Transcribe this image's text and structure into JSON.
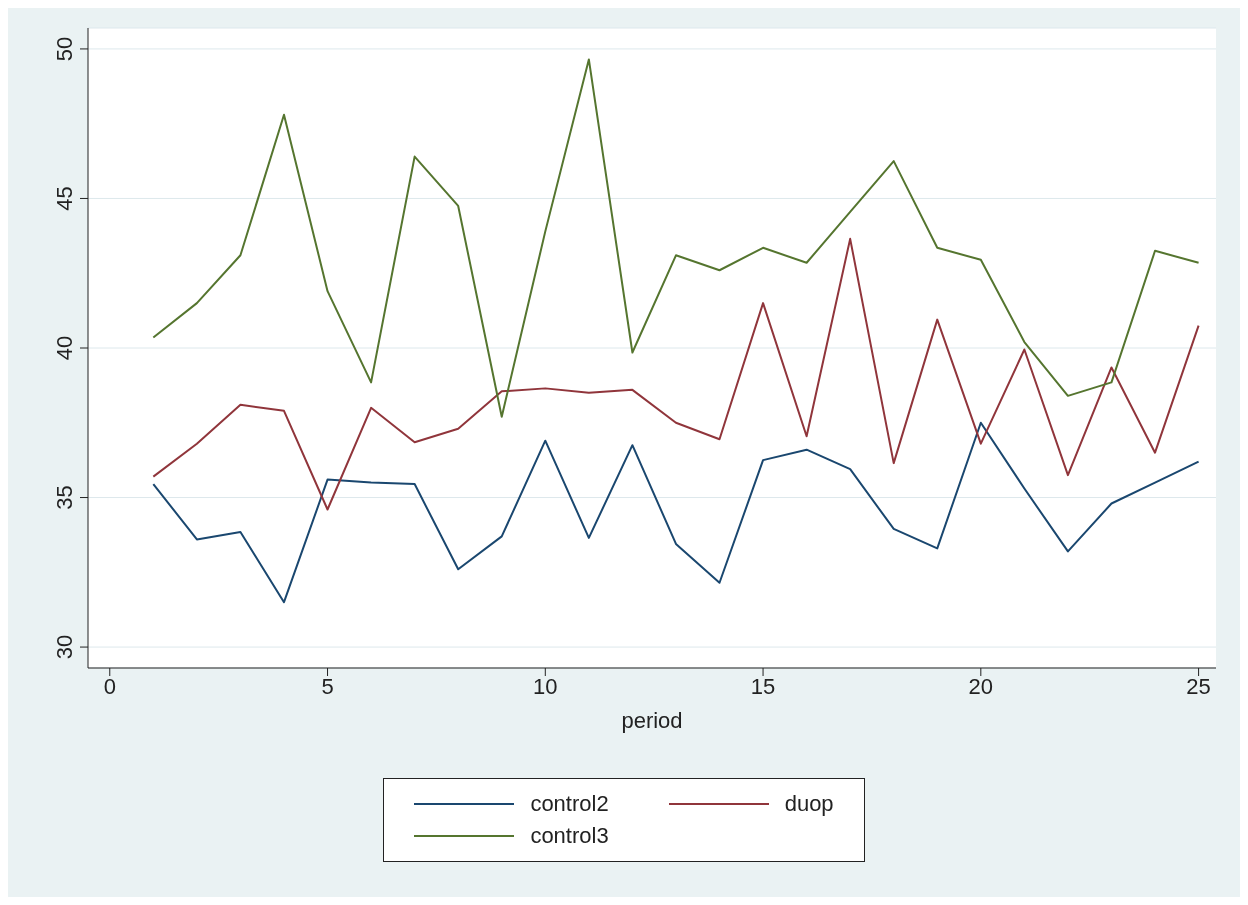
{
  "chart_data": {
    "type": "line",
    "xlabel": "period",
    "x": [
      1,
      2,
      3,
      4,
      5,
      6,
      7,
      8,
      9,
      10,
      11,
      12,
      13,
      14,
      15,
      16,
      17,
      18,
      19,
      20,
      21,
      22,
      23,
      24,
      25
    ],
    "series": [
      {
        "name": "control2",
        "color": "#1a476f",
        "values": [
          35.45,
          33.6,
          33.85,
          31.5,
          35.6,
          35.5,
          35.45,
          32.6,
          33.7,
          36.9,
          33.65,
          36.75,
          33.45,
          32.15,
          36.25,
          36.6,
          35.95,
          33.95,
          33.3,
          37.5,
          35.3,
          33.2,
          34.8,
          35.5,
          36.2
        ]
      },
      {
        "name": "duop",
        "color": "#90353b",
        "values": [
          35.7,
          36.8,
          38.1,
          37.9,
          34.6,
          38.0,
          36.85,
          37.3,
          38.55,
          38.65,
          38.5,
          38.6,
          37.5,
          36.95,
          41.5,
          37.05,
          43.65,
          36.15,
          40.95,
          36.8,
          39.95,
          35.75,
          39.35,
          36.5,
          40.75
        ]
      },
      {
        "name": "control3",
        "color": "#55752f",
        "values": [
          40.35,
          41.5,
          43.1,
          47.8,
          41.9,
          38.85,
          46.4,
          44.75,
          37.7,
          43.9,
          49.65,
          39.85,
          43.1,
          42.6,
          43.35,
          42.85,
          44.55,
          46.25,
          43.35,
          42.95,
          40.2,
          38.4,
          38.85,
          43.25,
          42.85
        ]
      }
    ],
    "xlim": [
      -0.5,
      25.4
    ],
    "xticks": [
      0,
      5,
      10,
      15,
      20,
      25
    ],
    "ylim": [
      29.3,
      50.7
    ],
    "yticks": [
      30,
      35,
      40,
      45,
      50
    ],
    "grid": "y",
    "legend": "bottom"
  }
}
